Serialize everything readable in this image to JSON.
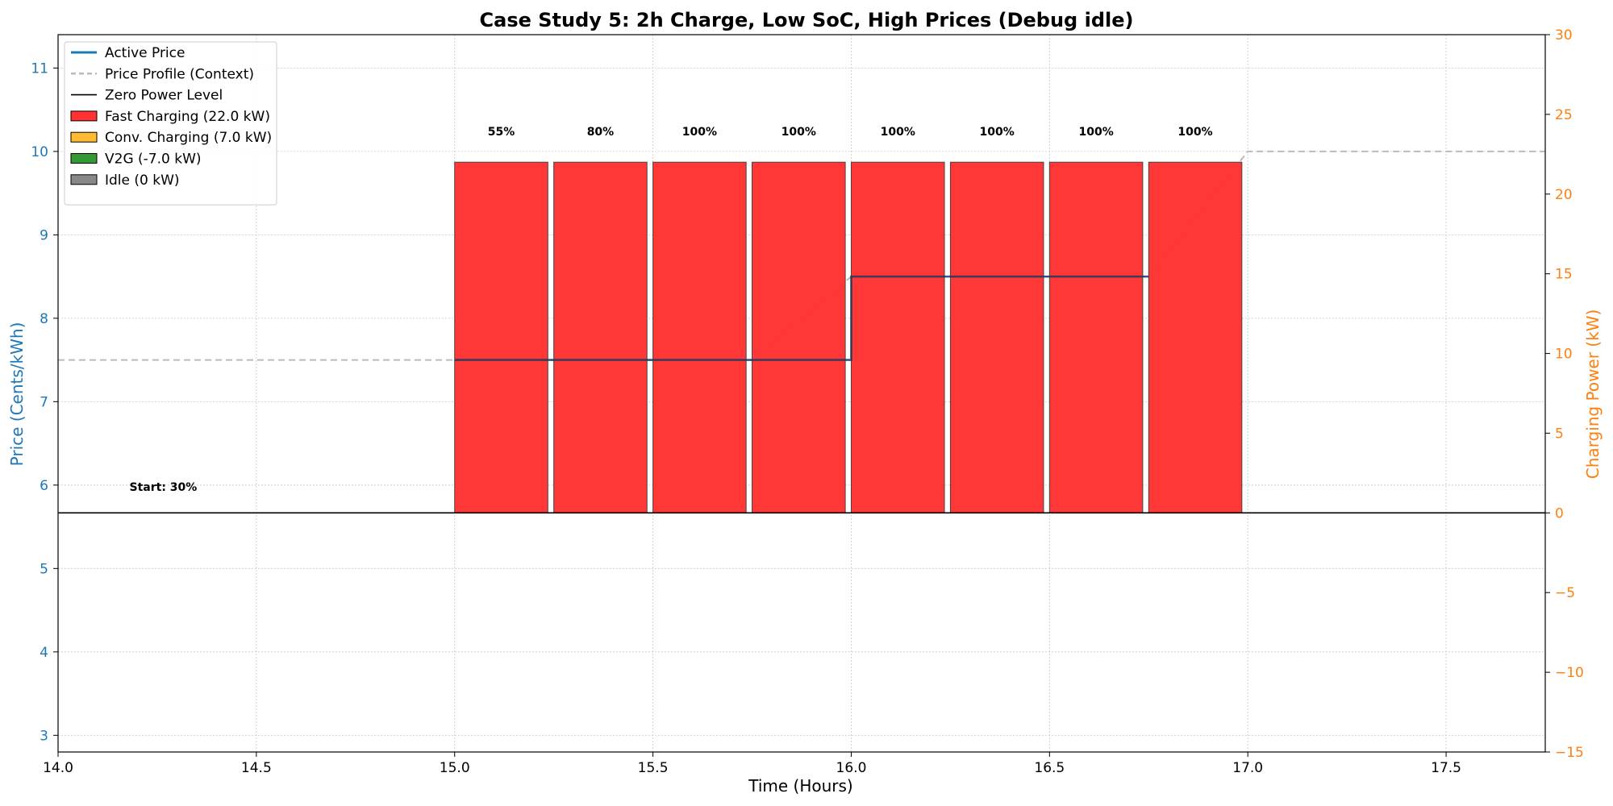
{
  "chart_data": {
    "type": "bar",
    "title": "Case Study 5: 2h Charge, Low SoC, High Prices (Debug idle)",
    "xlabel": "Time (Hours)",
    "ylabel_left": "Price (Cents/kWh)",
    "ylabel_right": "Charging Power (kW)",
    "xlim": [
      14.0,
      17.75
    ],
    "ylim_left": [
      2.8,
      11.4
    ],
    "ylim_right": [
      -15,
      30
    ],
    "x_ticks": [
      "14.0",
      "14.5",
      "15.0",
      "15.5",
      "16.0",
      "16.5",
      "17.0",
      "17.5"
    ],
    "y_left_ticks": [
      "3",
      "4",
      "5",
      "6",
      "7",
      "8",
      "9",
      "10",
      "11"
    ],
    "y_right_ticks": [
      "−15",
      "−10",
      "−5",
      "0",
      "5",
      "10",
      "15",
      "20",
      "25",
      "30"
    ],
    "grid": true,
    "legend_position": "top-left",
    "legend": [
      {
        "label": "Active Price",
        "kind": "line",
        "color": "#1f77b4"
      },
      {
        "label": "Price Profile (Context)",
        "kind": "dashed",
        "color": "#bbbbbb"
      },
      {
        "label": "Zero Power Level",
        "kind": "line-thin",
        "color": "#000000"
      },
      {
        "label": "Fast Charging (22.0 kW)",
        "kind": "patch",
        "color": "#ff3333"
      },
      {
        "label": "Conv. Charging (7.0 kW)",
        "kind": "patch",
        "color": "#ffbb33"
      },
      {
        "label": "V2G (-7.0 kW)",
        "kind": "patch",
        "color": "#339933"
      },
      {
        "label": "Idle (0 kW)",
        "kind": "patch",
        "color": "#888888"
      }
    ],
    "bars": [
      {
        "start": 15.0,
        "power": 22.0,
        "soc_label": "55%"
      },
      {
        "start": 15.25,
        "power": 22.0,
        "soc_label": "80%"
      },
      {
        "start": 15.5,
        "power": 22.0,
        "soc_label": "100%"
      },
      {
        "start": 15.75,
        "power": 22.0,
        "soc_label": "100%"
      },
      {
        "start": 16.0,
        "power": 22.0,
        "soc_label": "100%"
      },
      {
        "start": 16.25,
        "power": 22.0,
        "soc_label": "100%"
      },
      {
        "start": 16.5,
        "power": 22.0,
        "soc_label": "100%"
      },
      {
        "start": 16.75,
        "power": 22.0,
        "soc_label": "100%"
      }
    ],
    "bar_width_hours": 0.235,
    "active_price": {
      "x": [
        15.0,
        16.0,
        16.0,
        16.75
      ],
      "y": [
        7.5,
        7.5,
        8.5,
        8.5
      ]
    },
    "price_profile": {
      "x": [
        14.0,
        15.0,
        15.75,
        16.0,
        16.75,
        17.0,
        17.75
      ],
      "y": [
        7.5,
        7.5,
        7.5,
        8.5,
        8.5,
        10.0,
        10.0
      ]
    },
    "zero_power_level_kw": 0,
    "annotation": {
      "text": "Start: 30%",
      "x": 14.18,
      "y_price": 5.93
    }
  },
  "colors": {
    "fast": "#ff3333",
    "active_price": "#1f3a5f",
    "profile": "#bbbbbb",
    "left_axis": "#1f77b4",
    "right_axis": "#ff7f0e"
  }
}
